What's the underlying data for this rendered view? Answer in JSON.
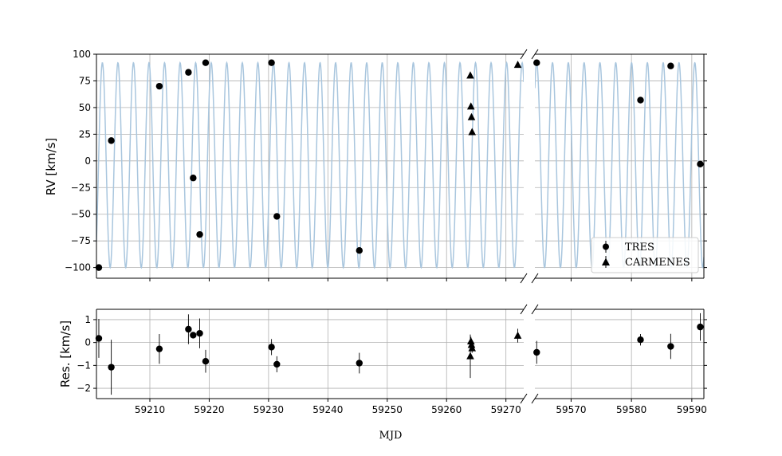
{
  "chart_data": [
    {
      "type": "scatter",
      "panel": "rv-left",
      "ylabel": "RV [km/s]",
      "xlim": [
        59201,
        59273
      ],
      "ylim": [
        -110,
        100
      ],
      "yticks": [
        -100,
        -75,
        -50,
        -25,
        0,
        25,
        50,
        75,
        100
      ],
      "ytick_labels": [
        "−100",
        "−75",
        "−50",
        "−25",
        "0",
        "25",
        "50",
        "75",
        "100"
      ],
      "grid": true,
      "model": {
        "color": "#a9c6de",
        "amplitude": 96,
        "offset": -4,
        "period_days": 2.62,
        "phase_t0": 59202.0
      },
      "series": [
        {
          "name": "TRES",
          "marker": "circle",
          "x": [
            59201.4,
            59203.5,
            59211.6,
            59216.5,
            59217.3,
            59218.4,
            59219.4,
            59230.5,
            59231.4,
            59245.3
          ],
          "y": [
            -100,
            19,
            70,
            83,
            -16,
            -69,
            92,
            92,
            -52,
            -84
          ]
        },
        {
          "name": "CARMENES",
          "marker": "triangle",
          "x": [
            59264.0,
            59264.1,
            59264.2,
            59264.3,
            59272.0
          ],
          "y": [
            80,
            51,
            41,
            27,
            90
          ]
        }
      ]
    },
    {
      "type": "scatter",
      "panel": "rv-right",
      "xlim": [
        59564,
        59592
      ],
      "ylim": [
        -110,
        100
      ],
      "grid": true,
      "model": {
        "color": "#a9c6de",
        "amplitude": 96,
        "offset": -4,
        "period_days": 2.62,
        "phase_t0": 59564.3
      },
      "series": [
        {
          "name": "TRES",
          "marker": "circle",
          "x": [
            59564.3,
            59581.5,
            59586.5,
            59591.4
          ],
          "y": [
            92,
            57,
            89,
            -3
          ]
        }
      ],
      "legend": {
        "placement": "lower-right",
        "entries": [
          "TRES",
          "CARMENES"
        ]
      }
    },
    {
      "type": "scatter",
      "panel": "res-left",
      "ylabel": "Res. [km/s]",
      "xlabel": "MJD",
      "xlim": [
        59201,
        59273
      ],
      "ylim": [
        -2.45,
        1.45
      ],
      "yticks": [
        -2,
        -1,
        0,
        1
      ],
      "ytick_labels": [
        "−2",
        "−1",
        "0",
        "1"
      ],
      "xticks": [
        59210,
        59220,
        59230,
        59240,
        59250,
        59260,
        59270
      ],
      "xtick_labels": [
        "59210",
        "59220",
        "59230",
        "59240",
        "59250",
        "59260",
        "59270"
      ],
      "grid": true,
      "series": [
        {
          "name": "TRES",
          "marker": "circle",
          "x": [
            59201.4,
            59203.5,
            59211.6,
            59216.5,
            59217.3,
            59218.4,
            59219.4,
            59230.5,
            59231.4,
            59245.3
          ],
          "y": [
            0.18,
            -1.08,
            -0.28,
            0.58,
            0.32,
            0.4,
            -0.82,
            -0.2,
            -0.95,
            -0.9
          ],
          "err": [
            0.85,
            1.2,
            0.65,
            0.65,
            0.1,
            0.65,
            0.5,
            0.35,
            0.35,
            0.45
          ]
        },
        {
          "name": "CARMENES",
          "marker": "triangle",
          "x": [
            59264.0,
            59264.1,
            59264.2,
            59264.3,
            59272.0
          ],
          "y": [
            -0.6,
            0.05,
            -0.1,
            -0.25,
            0.3
          ],
          "err": [
            0.95,
            0.2,
            0.2,
            0.2,
            0.3
          ]
        }
      ]
    },
    {
      "type": "scatter",
      "panel": "res-right",
      "xlim": [
        59564,
        59592
      ],
      "ylim": [
        -2.45,
        1.45
      ],
      "xticks": [
        59570,
        59580,
        59590
      ],
      "xtick_labels": [
        "59570",
        "59580",
        "59590"
      ],
      "grid": true,
      "series": [
        {
          "name": "TRES",
          "marker": "circle",
          "x": [
            59564.3,
            59581.5,
            59586.5,
            59591.4
          ],
          "y": [
            -0.43,
            0.12,
            -0.17,
            0.68
          ],
          "err": [
            0.5,
            0.25,
            0.55,
            0.6
          ]
        }
      ]
    }
  ]
}
